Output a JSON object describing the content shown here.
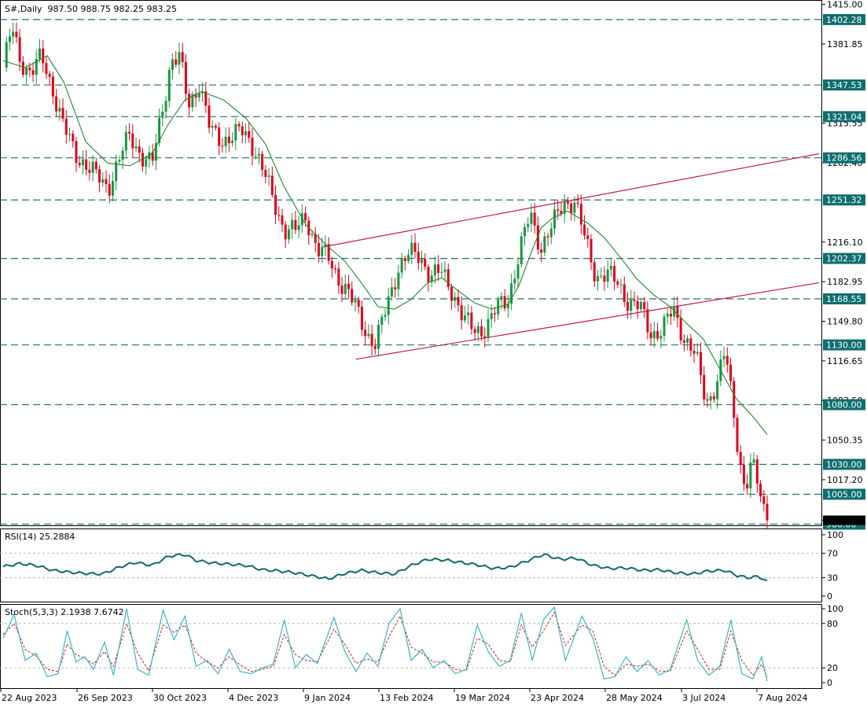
{
  "header": {
    "symbol_timeframe": "S#,Daily",
    "ohlc": "987.50 988.75 982.25 983.25"
  },
  "colors": {
    "background": "#ffffff",
    "bull_candle": "#1a9641",
    "bear_candle": "#e0001a",
    "sma_line": "#1f8a2a",
    "channel_line": "#c2184e",
    "level_line": "#2a6f6f",
    "level_tag": "#0f6e6e",
    "rsi_line": "#0e6a6a",
    "stoch_main": "#2ab0c2",
    "stoch_signal": "#d11a1a",
    "grid_dashed": "#b8b8b8"
  },
  "price_axis_ticks": [
    "1415.00",
    "1381.85",
    "1315.55",
    "1282.40",
    "1216.10",
    "1182.95",
    "1149.80",
    "1116.65",
    "1083.50",
    "1050.35",
    "1017.20",
    "983.25"
  ],
  "levels": [
    "1402.28",
    "1347.53",
    "1321.04",
    "1286.56",
    "1251.32",
    "1202.37",
    "1168.55",
    "1130.00",
    "1080.00",
    "1030.00",
    "1005.00",
    "980.00"
  ],
  "rsi_panel": {
    "label": "RSI(14) 25.2884",
    "ticks": [
      "100",
      "70",
      "30",
      "0"
    ]
  },
  "stoch_panel": {
    "label": "Stoch(5,3,3) 2.1938 7.6742",
    "ticks": [
      "100",
      "80",
      "20",
      "0"
    ]
  },
  "x_axis_dates": [
    "22 Aug 2023",
    "26 Sep 2023",
    "30 Oct 2023",
    "4 Dec 2023",
    "9 Jan 2024",
    "13 Feb 2024",
    "19 Mar 2024",
    "23 Apr 2024",
    "28 May 2024",
    "3 Jul 2024",
    "7 Aug 2024"
  ],
  "chart_data": {
    "type": "candlestick",
    "title": "S#,Daily",
    "ylim": [
      979,
      1418
    ],
    "close_path": [
      [
        0,
        1362
      ],
      [
        8,
        1395
      ],
      [
        15,
        1370
      ],
      [
        25,
        1358
      ],
      [
        35,
        1370
      ],
      [
        45,
        1345
      ],
      [
        55,
        1312
      ],
      [
        65,
        1290
      ],
      [
        75,
        1282
      ],
      [
        85,
        1270
      ],
      [
        95,
        1262
      ],
      [
        105,
        1285
      ],
      [
        115,
        1305
      ],
      [
        125,
        1290
      ],
      [
        135,
        1280
      ],
      [
        145,
        1330
      ],
      [
        152,
        1368
      ],
      [
        160,
        1370
      ],
      [
        168,
        1330
      ],
      [
        178,
        1350
      ],
      [
        188,
        1308
      ],
      [
        198,
        1302
      ],
      [
        208,
        1305
      ],
      [
        218,
        1308
      ],
      [
        228,
        1296
      ],
      [
        238,
        1270
      ],
      [
        245,
        1250
      ],
      [
        255,
        1228
      ],
      [
        265,
        1225
      ],
      [
        275,
        1238
      ],
      [
        285,
        1210
      ],
      [
        295,
        1202
      ],
      [
        305,
        1185
      ],
      [
        312,
        1175
      ],
      [
        320,
        1160
      ],
      [
        330,
        1140
      ],
      [
        338,
        1130
      ],
      [
        348,
        1162
      ],
      [
        358,
        1195
      ],
      [
        368,
        1205
      ],
      [
        378,
        1205
      ],
      [
        388,
        1188
      ],
      [
        398,
        1190
      ],
      [
        408,
        1175
      ],
      [
        418,
        1150
      ],
      [
        428,
        1142
      ],
      [
        438,
        1145
      ],
      [
        448,
        1160
      ],
      [
        458,
        1170
      ],
      [
        468,
        1205
      ],
      [
        478,
        1240
      ],
      [
        488,
        1212
      ],
      [
        498,
        1228
      ],
      [
        508,
        1250
      ],
      [
        518,
        1250
      ],
      [
        528,
        1218
      ],
      [
        538,
        1188
      ],
      [
        548,
        1188
      ],
      [
        558,
        1182
      ],
      [
        568,
        1165
      ],
      [
        578,
        1160
      ],
      [
        588,
        1140
      ],
      [
        598,
        1142
      ],
      [
        608,
        1160
      ],
      [
        618,
        1136
      ],
      [
        628,
        1120
      ],
      [
        638,
        1082
      ],
      [
        648,
        1100
      ],
      [
        655,
        1124
      ],
      [
        662,
        1078
      ],
      [
        668,
        1035
      ],
      [
        673,
        1008
      ],
      [
        679,
        1030
      ],
      [
        685,
        1012
      ],
      [
        693,
        983.25
      ]
    ],
    "sma": {
      "name": "",
      "points": [
        [
          0,
          1368
        ],
        [
          20,
          1362
        ],
        [
          40,
          1372
        ],
        [
          55,
          1350
        ],
        [
          75,
          1300
        ],
        [
          95,
          1282
        ],
        [
          115,
          1280
        ],
        [
          135,
          1290
        ],
        [
          150,
          1315
        ],
        [
          165,
          1335
        ],
        [
          180,
          1342
        ],
        [
          200,
          1335
        ],
        [
          220,
          1320
        ],
        [
          238,
          1298
        ],
        [
          255,
          1262
        ],
        [
          275,
          1230
        ],
        [
          295,
          1212
        ],
        [
          310,
          1200
        ],
        [
          325,
          1182
        ],
        [
          340,
          1162
        ],
        [
          355,
          1160
        ],
        [
          370,
          1168
        ],
        [
          385,
          1182
        ],
        [
          398,
          1186
        ],
        [
          413,
          1175
        ],
        [
          428,
          1165
        ],
        [
          443,
          1160
        ],
        [
          458,
          1164
        ],
        [
          468,
          1180
        ],
        [
          478,
          1205
        ],
        [
          488,
          1228
        ],
        [
          498,
          1236
        ],
        [
          512,
          1242
        ],
        [
          530,
          1232
        ],
        [
          545,
          1220
        ],
        [
          560,
          1203
        ],
        [
          575,
          1185
        ],
        [
          590,
          1172
        ],
        [
          605,
          1162
        ],
        [
          620,
          1148
        ],
        [
          635,
          1135
        ],
        [
          650,
          1110
        ],
        [
          665,
          1085
        ],
        [
          680,
          1070
        ],
        [
          693,
          1055
        ]
      ]
    },
    "channel_lines": [
      {
        "from": [
          320,
          1118
        ],
        "to": [
          740,
          1182
        ]
      },
      {
        "from": [
          290,
          1212
        ],
        "to": [
          740,
          1290
        ]
      }
    ],
    "horizontal_levels": [
      1402.28,
      1347.53,
      1321.04,
      1286.56,
      1251.32,
      1202.37,
      1168.55,
      1130.0,
      1080.0,
      1030.0,
      1005.0,
      980.0
    ],
    "last_close": 983.25,
    "rsi": {
      "name": "RSI(14)",
      "last": 25.2884,
      "ylim": [
        0,
        100
      ],
      "levels": [
        70,
        30
      ],
      "points": [
        [
          0,
          48
        ],
        [
          15,
          53
        ],
        [
          30,
          50
        ],
        [
          45,
          42
        ],
        [
          60,
          39
        ],
        [
          75,
          37
        ],
        [
          90,
          36
        ],
        [
          105,
          47
        ],
        [
          120,
          55
        ],
        [
          135,
          50
        ],
        [
          150,
          65
        ],
        [
          165,
          68
        ],
        [
          175,
          58
        ],
        [
          190,
          54
        ],
        [
          205,
          52
        ],
        [
          220,
          50
        ],
        [
          235,
          43
        ],
        [
          250,
          41
        ],
        [
          265,
          38
        ],
        [
          280,
          33
        ],
        [
          295,
          28
        ],
        [
          310,
          37
        ],
        [
          325,
          42
        ],
        [
          340,
          38
        ],
        [
          355,
          36
        ],
        [
          370,
          50
        ],
        [
          385,
          60
        ],
        [
          400,
          59
        ],
        [
          415,
          55
        ],
        [
          430,
          51
        ],
        [
          445,
          45
        ],
        [
          460,
          47
        ],
        [
          475,
          57
        ],
        [
          490,
          68
        ],
        [
          505,
          60
        ],
        [
          520,
          62
        ],
        [
          535,
          50
        ],
        [
          550,
          45
        ],
        [
          565,
          46
        ],
        [
          580,
          42
        ],
        [
          595,
          43
        ],
        [
          610,
          38
        ],
        [
          625,
          36
        ],
        [
          640,
          41
        ],
        [
          655,
          42
        ],
        [
          665,
          34
        ],
        [
          675,
          30
        ],
        [
          685,
          32
        ],
        [
          693,
          25
        ]
      ]
    },
    "stochastic": {
      "name": "Stoch(5,3,3)",
      "main_last": 2.1938,
      "signal_last": 7.6742,
      "ylim": [
        0,
        100
      ],
      "levels": [
        80,
        20
      ],
      "main": [
        [
          0,
          60
        ],
        [
          10,
          92
        ],
        [
          20,
          30
        ],
        [
          30,
          40
        ],
        [
          40,
          8
        ],
        [
          50,
          12
        ],
        [
          58,
          70
        ],
        [
          66,
          28
        ],
        [
          74,
          35
        ],
        [
          82,
          18
        ],
        [
          92,
          55
        ],
        [
          100,
          10
        ],
        [
          112,
          100
        ],
        [
          122,
          18
        ],
        [
          132,
          10
        ],
        [
          145,
          98
        ],
        [
          155,
          58
        ],
        [
          165,
          90
        ],
        [
          175,
          22
        ],
        [
          185,
          30
        ],
        [
          195,
          12
        ],
        [
          205,
          45
        ],
        [
          215,
          15
        ],
        [
          225,
          12
        ],
        [
          235,
          20
        ],
        [
          245,
          25
        ],
        [
          255,
          85
        ],
        [
          265,
          20
        ],
        [
          275,
          38
        ],
        [
          285,
          26
        ],
        [
          300,
          88
        ],
        [
          310,
          42
        ],
        [
          320,
          15
        ],
        [
          330,
          40
        ],
        [
          340,
          22
        ],
        [
          350,
          80
        ],
        [
          360,
          100
        ],
        [
          370,
          30
        ],
        [
          380,
          45
        ],
        [
          390,
          20
        ],
        [
          400,
          30
        ],
        [
          410,
          12
        ],
        [
          420,
          18
        ],
        [
          430,
          78
        ],
        [
          440,
          42
        ],
        [
          450,
          22
        ],
        [
          460,
          30
        ],
        [
          470,
          94
        ],
        [
          480,
          30
        ],
        [
          490,
          85
        ],
        [
          500,
          102
        ],
        [
          510,
          30
        ],
        [
          525,
          90
        ],
        [
          535,
          60
        ],
        [
          545,
          5
        ],
        [
          555,
          8
        ],
        [
          565,
          35
        ],
        [
          575,
          15
        ],
        [
          585,
          30
        ],
        [
          595,
          10
        ],
        [
          605,
          18
        ],
        [
          620,
          85
        ],
        [
          630,
          30
        ],
        [
          640,
          10
        ],
        [
          650,
          22
        ],
        [
          660,
          85
        ],
        [
          670,
          12
        ],
        [
          680,
          5
        ],
        [
          688,
          35
        ],
        [
          693,
          2
        ]
      ],
      "signal": [
        [
          0,
          65
        ],
        [
          10,
          80
        ],
        [
          20,
          45
        ],
        [
          30,
          36
        ],
        [
          40,
          18
        ],
        [
          50,
          15
        ],
        [
          58,
          52
        ],
        [
          66,
          38
        ],
        [
          74,
          33
        ],
        [
          82,
          25
        ],
        [
          92,
          42
        ],
        [
          100,
          22
        ],
        [
          112,
          80
        ],
        [
          122,
          40
        ],
        [
          132,
          16
        ],
        [
          145,
          78
        ],
        [
          155,
          68
        ],
        [
          165,
          78
        ],
        [
          175,
          40
        ],
        [
          185,
          28
        ],
        [
          195,
          20
        ],
        [
          205,
          35
        ],
        [
          215,
          24
        ],
        [
          225,
          15
        ],
        [
          235,
          18
        ],
        [
          245,
          22
        ],
        [
          255,
          65
        ],
        [
          265,
          38
        ],
        [
          275,
          30
        ],
        [
          285,
          28
        ],
        [
          300,
          72
        ],
        [
          310,
          52
        ],
        [
          320,
          26
        ],
        [
          330,
          32
        ],
        [
          340,
          28
        ],
        [
          350,
          62
        ],
        [
          360,
          90
        ],
        [
          370,
          48
        ],
        [
          380,
          40
        ],
        [
          390,
          28
        ],
        [
          400,
          28
        ],
        [
          410,
          18
        ],
        [
          420,
          16
        ],
        [
          430,
          60
        ],
        [
          440,
          52
        ],
        [
          450,
          30
        ],
        [
          460,
          28
        ],
        [
          470,
          78
        ],
        [
          480,
          48
        ],
        [
          490,
          70
        ],
        [
          500,
          95
        ],
        [
          510,
          50
        ],
        [
          525,
          78
        ],
        [
          535,
          70
        ],
        [
          545,
          22
        ],
        [
          555,
          10
        ],
        [
          565,
          25
        ],
        [
          575,
          22
        ],
        [
          585,
          25
        ],
        [
          595,
          16
        ],
        [
          605,
          15
        ],
        [
          620,
          70
        ],
        [
          630,
          45
        ],
        [
          640,
          18
        ],
        [
          650,
          18
        ],
        [
          660,
          70
        ],
        [
          670,
          30
        ],
        [
          680,
          10
        ],
        [
          688,
          25
        ],
        [
          693,
          7.67
        ]
      ]
    }
  }
}
